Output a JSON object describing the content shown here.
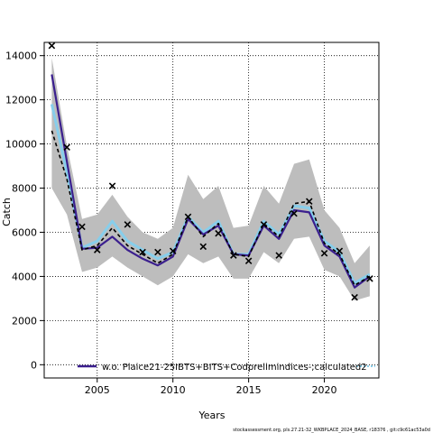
{
  "chart_data": {
    "type": "line",
    "title": "",
    "xlabel": "Years",
    "ylabel": "Catch",
    "xlim": [
      2001.5,
      2023.6
    ],
    "ylim": [
      -600,
      14600
    ],
    "x_ticks": [
      2005,
      2010,
      2015,
      2020
    ],
    "y_ticks": [
      0,
      2000,
      4000,
      6000,
      8000,
      10000,
      12000,
      14000
    ],
    "grid": true,
    "legend": {
      "position": "bottom-center",
      "label": "w.o. Plaice21-25IBTS+BITS+Codprelimindices-;calculated2"
    },
    "footer": "stockassessment.org, pls.27.21-32_WKBPLACE_2024_BASE, r18376 , git:c9c61ac53a0d",
    "colors": {
      "band": "#bdbdbd",
      "sky": "#87ceeb",
      "purple": "#3b1f8e",
      "black_dashed": "#000000",
      "observed": "#000000"
    },
    "band": {
      "x": [
        2002,
        2003,
        2004,
        2005,
        2006,
        2007,
        2008,
        2009,
        2010,
        2011,
        2012,
        2013,
        2014,
        2015,
        2016,
        2017,
        2018,
        2019,
        2020,
        2021,
        2022,
        2023
      ],
      "upper": [
        13900,
        9900,
        6600,
        6800,
        7700,
        6700,
        6000,
        5700,
        6200,
        8600,
        7500,
        8100,
        6200,
        6300,
        8100,
        7300,
        9100,
        9300,
        7000,
        6200,
        4600,
        5400
      ],
      "lower": [
        8000,
        6800,
        4200,
        4400,
        4900,
        4400,
        4000,
        3600,
        4000,
        5000,
        4600,
        4900,
        3900,
        3900,
        5100,
        4600,
        5700,
        5800,
        4300,
        4000,
        2900,
        3100
      ]
    },
    "series": [
      {
        "name": "w.o. Plaice21-25IBTS+BITS+Codprelimindices-;calculated2",
        "style": "line",
        "color": "#3b1f8e",
        "x": [
          2002,
          2003,
          2004,
          2005,
          2006,
          2007,
          2008,
          2009,
          2010,
          2011,
          2012,
          2013,
          2014,
          2015,
          2016,
          2017,
          2018,
          2019,
          2020,
          2021,
          2022,
          2023
        ],
        "values": [
          13150,
          9200,
          5250,
          5300,
          5800,
          5200,
          4800,
          4500,
          4900,
          6600,
          5900,
          6300,
          5000,
          4950,
          6300,
          5700,
          7000,
          6900,
          5400,
          4900,
          3500,
          4000
        ]
      },
      {
        "style": "line",
        "color": "#87ceeb",
        "x": [
          2002,
          2003,
          2004,
          2005,
          2006,
          2007,
          2008,
          2009,
          2010,
          2011,
          2012,
          2013,
          2014,
          2015,
          2016,
          2017,
          2018,
          2019,
          2020,
          2021,
          2022,
          2023
        ],
        "values": [
          11800,
          8700,
          5300,
          5600,
          6500,
          5600,
          5200,
          4800,
          5100,
          6700,
          6000,
          6500,
          5000,
          5000,
          6500,
          5900,
          7200,
          7100,
          5600,
          5100,
          3700,
          4100
        ]
      },
      {
        "style": "dashed",
        "color": "#000000",
        "x": [
          2002,
          2003,
          2004,
          2005,
          2006,
          2007,
          2008,
          2009,
          2010,
          2011,
          2012,
          2013,
          2014,
          2015,
          2016,
          2017,
          2018,
          2019,
          2020,
          2021,
          2022,
          2023
        ],
        "values": [
          10600,
          8400,
          5200,
          5400,
          6200,
          5400,
          5000,
          4600,
          5000,
          6700,
          5800,
          6400,
          5000,
          4900,
          6400,
          5800,
          7300,
          7400,
          5500,
          5000,
          3600,
          4000
        ]
      },
      {
        "style": "markers",
        "marker": "x",
        "color": "#000000",
        "x": [
          2002,
          2003,
          2004,
          2005,
          2006,
          2007,
          2008,
          2009,
          2010,
          2011,
          2012,
          2013,
          2014,
          2015,
          2016,
          2017,
          2018,
          2019,
          2020,
          2021,
          2022,
          2023
        ],
        "values": [
          14450,
          9850,
          6250,
          5200,
          8100,
          6350,
          5100,
          5100,
          5150,
          6700,
          5350,
          5950,
          4950,
          4700,
          6350,
          4950,
          6850,
          7400,
          5050,
          5150,
          3050,
          3900
        ]
      }
    ]
  }
}
